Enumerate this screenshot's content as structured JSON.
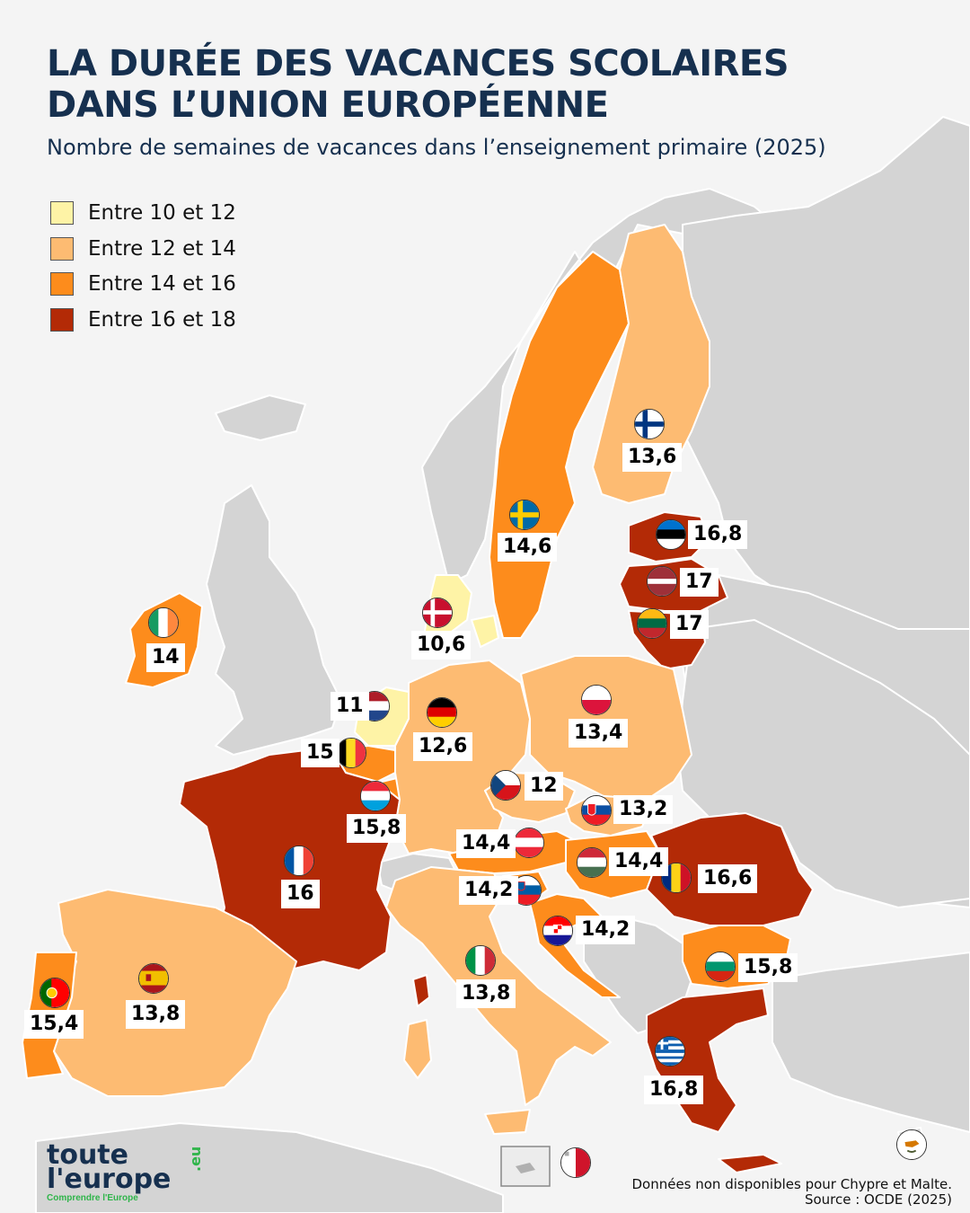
{
  "title_line1": "LA DURÉE DES VACANCES SCOLAIRES",
  "title_line2": "DANS L’UNION EUROPÉENNE",
  "subtitle": "Nombre de semaines de vacances dans l’enseignement primaire (2025)",
  "legend": [
    {
      "label": "Entre 10 et 12",
      "color": "#fef3a6"
    },
    {
      "label": "Entre 12 et 14",
      "color": "#fdbb72"
    },
    {
      "label": "Entre 14 et 16",
      "color": "#fd8c1c"
    },
    {
      "label": "Entre 16 et 18",
      "color": "#b32a06"
    }
  ],
  "colors": {
    "background": "#f4f4f4",
    "non_eu_land": "#d4d4d4",
    "borders": "#ffffff",
    "title": "#16304f",
    "logo_green": "#2fb54a"
  },
  "countries": [
    {
      "id": "fi",
      "label": "13,6",
      "flag": "finland-flag-icon",
      "class": "12-14"
    },
    {
      "id": "se",
      "label": "14,6",
      "flag": "sweden-flag-icon",
      "class": "14-16"
    },
    {
      "id": "ee",
      "label": "16,8",
      "flag": "estonia-flag-icon",
      "class": "16-18"
    },
    {
      "id": "lv",
      "label": "17",
      "flag": "latvia-flag-icon",
      "class": "16-18"
    },
    {
      "id": "lt",
      "label": "17",
      "flag": "lithuania-flag-icon",
      "class": "16-18"
    },
    {
      "id": "dk",
      "label": "10,6",
      "flag": "denmark-flag-icon",
      "class": "10-12"
    },
    {
      "id": "ie",
      "label": "14",
      "flag": "ireland-flag-icon",
      "class": "14-16"
    },
    {
      "id": "nl",
      "label": "11",
      "flag": "netherlands-flag-icon",
      "class": "10-12"
    },
    {
      "id": "de",
      "label": "12,6",
      "flag": "germany-flag-icon",
      "class": "12-14"
    },
    {
      "id": "pl",
      "label": "13,4",
      "flag": "poland-flag-icon",
      "class": "12-14"
    },
    {
      "id": "be",
      "label": "15",
      "flag": "belgium-flag-icon",
      "class": "14-16"
    },
    {
      "id": "cz",
      "label": "12",
      "flag": "czechia-flag-icon",
      "class": "12-14"
    },
    {
      "id": "lu",
      "label": "15,8",
      "flag": "luxembourg-flag-icon",
      "class": "14-16"
    },
    {
      "id": "sk",
      "label": "13,2",
      "flag": "slovakia-flag-icon",
      "class": "12-14"
    },
    {
      "id": "at",
      "label": "14,4",
      "flag": "austria-flag-icon",
      "class": "14-16"
    },
    {
      "id": "hu",
      "label": "14,4",
      "flag": "hungary-flag-icon",
      "class": "14-16"
    },
    {
      "id": "ro",
      "label": "16,6",
      "flag": "romania-flag-icon",
      "class": "16-18"
    },
    {
      "id": "fr",
      "label": "16",
      "flag": "france-flag-icon",
      "class": "16-18"
    },
    {
      "id": "si",
      "label": "14,2",
      "flag": "slovenia-flag-icon",
      "class": "14-16"
    },
    {
      "id": "hr",
      "label": "14,2",
      "flag": "croatia-flag-icon",
      "class": "14-16"
    },
    {
      "id": "it",
      "label": "13,8",
      "flag": "italy-flag-icon",
      "class": "12-14"
    },
    {
      "id": "bg",
      "label": "15,8",
      "flag": "bulgaria-flag-icon",
      "class": "14-16"
    },
    {
      "id": "pt",
      "label": "15,4",
      "flag": "portugal-flag-icon",
      "class": "14-16"
    },
    {
      "id": "es",
      "label": "13,8",
      "flag": "spain-flag-icon",
      "class": "12-14"
    },
    {
      "id": "gr",
      "label": "16,8",
      "flag": "greece-flag-icon",
      "class": "16-18"
    }
  ],
  "no_data_flags": [
    "malta-flag-icon",
    "cyprus-flag-icon"
  ],
  "logo": {
    "line1": "toute",
    "line2": "l'europe",
    "suffix": ".eu",
    "tagline": "Comprendre l'Europe"
  },
  "note_line1": "Données non disponibles pour Chypre et Malte.",
  "note_line2": "Source : OCDE (2025)"
}
